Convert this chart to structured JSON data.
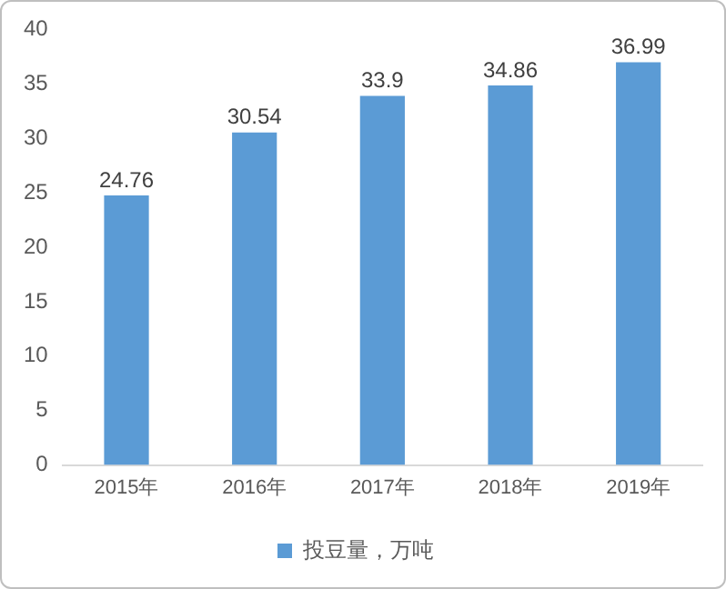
{
  "chart_data": {
    "type": "bar",
    "categories": [
      "2015年",
      "2016年",
      "2017年",
      "2018年",
      "2019年"
    ],
    "series": [
      {
        "name": "投豆量，万吨",
        "color": "#5b9bd5",
        "values": [
          24.76,
          30.54,
          33.9,
          34.86,
          36.99
        ]
      }
    ],
    "ylim": [
      0,
      40
    ],
    "yticks": [
      0,
      5,
      10,
      15,
      20,
      25,
      30,
      35,
      40
    ],
    "grid": false,
    "legend": "bottom",
    "data_labels": true
  }
}
